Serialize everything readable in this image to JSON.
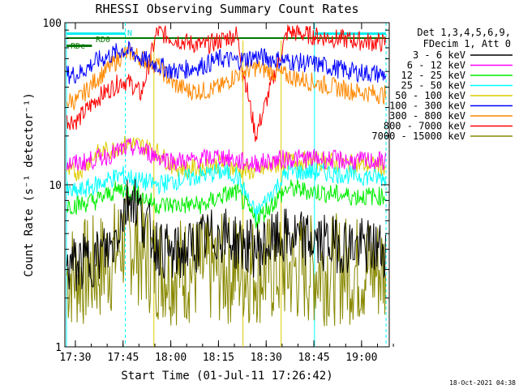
{
  "chart_data": {
    "type": "line",
    "title": "RHESSI Observing Summary Count Rates",
    "xlabel": "Start Time (01-Jul-11 17:26:42)",
    "ylabel": "Count Rate (s⁻¹ detector⁻¹)",
    "yscale": "log",
    "ylim": [
      1,
      100
    ],
    "xlim_minutes_after_1726": [
      0,
      102
    ],
    "x_ticks": [
      "17:30",
      "17:45",
      "18:00",
      "18:15",
      "18:30",
      "18:45",
      "19:00"
    ],
    "y_ticks": [
      "1",
      "10",
      "100"
    ],
    "legend_header": [
      "Det 1,3,4,5,6,9,",
      "FDecim 1, Att 0"
    ],
    "legend_position": "right",
    "stamp": "18-Oct-2021 04:38",
    "annotations": {
      "rd0": "RD0",
      "rdc": "RDc",
      "n": "N"
    },
    "colors": {
      "grid_solid": "#00ffff",
      "grid_dashed": "#00ffff",
      "gaps": "#000000",
      "flag_green": "#007700",
      "flag_cyan": "#00eeee"
    },
    "solid_vlines_minutes": [
      0.5,
      78.5
    ],
    "dashed_vlines_minutes": [
      19,
      101
    ],
    "segments_minutes": [
      [
        8.5,
        28
      ],
      [
        28,
        56
      ],
      [
        56,
        68
      ],
      [
        68,
        102
      ]
    ],
    "series": [
      {
        "name": "3 - 6 keV",
        "color": "#000000",
        "values": [
          3.2,
          3.6,
          4.2,
          6.5,
          9.0,
          6.5,
          4.2,
          3.6,
          4.0,
          4.6,
          5.0,
          4.4,
          4.0,
          4.8,
          4.4,
          4.2,
          4.0
        ]
      },
      {
        "name": "6 - 12 keV",
        "color": "#ff00ff",
        "values": [
          13.5,
          14.5,
          15.5,
          16.5,
          17.0,
          16.5,
          15.0,
          14.0,
          14.0,
          14.5,
          15.0,
          14.0,
          13.5,
          14.5,
          14.5,
          14.0,
          14.0
        ]
      },
      {
        "name": "12 - 25 keV",
        "color": "#00ee00",
        "values": [
          7.5,
          8.0,
          9.0,
          9.5,
          9.0,
          8.5,
          7.5,
          7.5,
          7.5,
          7.5,
          8.5,
          9.0,
          6.0,
          9.5,
          9.0,
          8.5,
          8.5
        ]
      },
      {
        "name": "25 - 50 keV",
        "color": "#00ffff",
        "values": [
          9.0,
          10.0,
          11.0,
          11.5,
          11.0,
          10.5,
          10.0,
          10.5,
          11.0,
          11.5,
          12.0,
          11.5,
          6.5,
          12.0,
          12.0,
          11.5,
          11.0
        ]
      },
      {
        "name": "50 - 100 keV",
        "color": "#ddcc00",
        "values": [
          12.0,
          15.5,
          16.5,
          17.5,
          18.0,
          17.5,
          16.0,
          13.0,
          12.5,
          13.0,
          13.5,
          12.5,
          12.0,
          14.0,
          14.0,
          13.5,
          13.0
        ]
      },
      {
        "name": "100 - 300 keV",
        "color": "#0000ff",
        "values": [
          48.0,
          58.0,
          64.0,
          68.0,
          66.0,
          60.0,
          55.0,
          50.0,
          52.0,
          55.0,
          60.0,
          58.0,
          62.0,
          58.0,
          55.0,
          50.0,
          48.0
        ]
      },
      {
        "name": "300 - 800 keV",
        "color": "#ff8800",
        "values": [
          33.0,
          45.0,
          55.0,
          63.0,
          66.0,
          60.0,
          55.0,
          42.0,
          38.0,
          38.0,
          40.0,
          48.0,
          53.0,
          47.0,
          42.0,
          38.0,
          36.0
        ]
      },
      {
        "name": "800 - 7000 keV",
        "color": "#ff0000",
        "values": [
          25.0,
          34.0,
          40.0,
          44.0,
          42.0,
          36.0,
          88.0,
          80.0,
          75.0,
          72.0,
          78.0,
          85.0,
          20.0,
          88.0,
          82.0,
          78.0,
          75.0
        ]
      },
      {
        "name": "7000 - 15000 keV",
        "color": "#888800",
        "values": [
          2.8,
          3.0,
          3.5,
          4.5,
          4.5,
          3.8,
          3.2,
          3.0,
          3.0,
          3.0,
          3.0,
          3.0,
          3.0,
          3.0,
          3.0,
          3.0,
          3.0
        ]
      }
    ],
    "x_minutes": [
      4,
      10,
      15,
      18,
      21,
      24,
      29,
      34,
      39,
      44,
      49,
      54,
      60,
      70,
      80,
      90,
      100
    ]
  }
}
